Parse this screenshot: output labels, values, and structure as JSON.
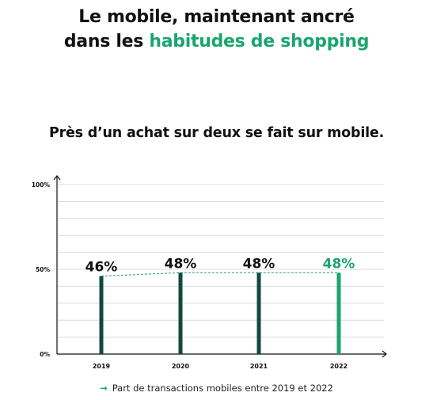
{
  "header": {
    "title_line1": "Le mobile, maintenant ancré",
    "title_line2_prefix": "dans les ",
    "title_line2_highlight": "habitudes de shopping",
    "subtitle": "Près d’un achat sur deux se fait sur mobile."
  },
  "legend": {
    "icon": "arrow-right-icon",
    "text": "Part de transactions mobiles entre 2019 et 2022"
  },
  "colors": {
    "dark": "#0f4a41",
    "accent": "#1aa56e",
    "grid": "#dcdcdc"
  },
  "chart_data": {
    "type": "bar",
    "categories": [
      "2019",
      "2020",
      "2021",
      "2022"
    ],
    "values": [
      46,
      48,
      48,
      48
    ],
    "value_labels": [
      "46%",
      "48%",
      "48%",
      "48%"
    ],
    "highlight_index": 3,
    "ylim": [
      0,
      100
    ],
    "ytick_labels": [
      "100%",
      "50%",
      "0%"
    ],
    "ytick_values": [
      100,
      50,
      0
    ],
    "grid": true,
    "trend_line": "dashed"
  }
}
